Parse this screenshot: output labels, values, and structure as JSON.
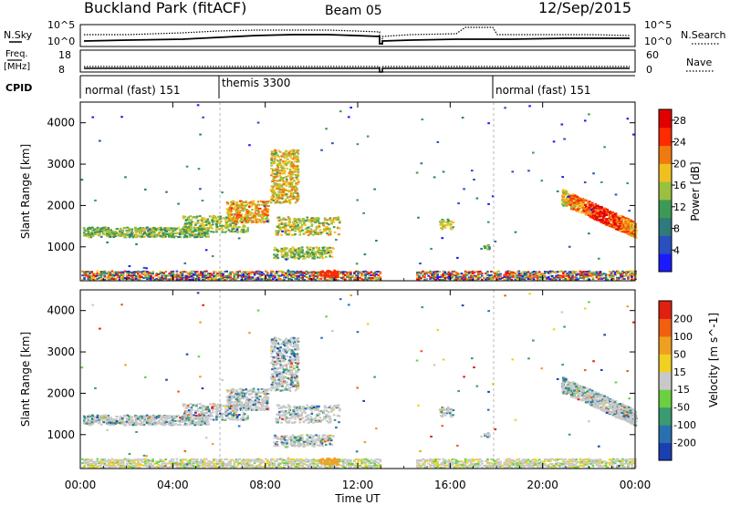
{
  "header": {
    "station": "Buckland Park (fitACF)",
    "beam": "Beam 05",
    "date": "12/Sep/2015"
  },
  "noise_panel": {
    "left_label": "N.Sky",
    "right_label": "N.Search",
    "left_ticks": [
      "10^5",
      "10^0"
    ],
    "right_ticks": [
      "10^5",
      "10^0"
    ]
  },
  "freq_panel": {
    "left_label_1": "Freq.",
    "left_label_2": "[MHz]",
    "right_label": "Nave",
    "left_ticks": [
      "18",
      "8"
    ],
    "right_ticks": [
      "60",
      "0"
    ]
  },
  "cpid": {
    "label": "CPID",
    "segments": [
      {
        "name": "normal (fast) 151",
        "start_h": 0,
        "end_h": 6
      },
      {
        "name": "themis 3300",
        "start_h": 6,
        "end_h": 18
      },
      {
        "name": "normal (fast) 151",
        "start_h": 18,
        "end_h": 24
      }
    ]
  },
  "chart_data": [
    {
      "type": "heatmap",
      "name": "power",
      "xlabel": "Time UT",
      "ylabel": "Slant Range [km]",
      "xlim": [
        0,
        24
      ],
      "ylim": [
        180,
        4500
      ],
      "x_ticks": [
        "00:00",
        "04:00",
        "08:00",
        "12:00",
        "16:00",
        "20:00",
        "00:00"
      ],
      "y_ticks": [
        1000,
        2000,
        3000,
        4000
      ],
      "data_gap_h": [
        13.0,
        14.5
      ],
      "colorbar": {
        "label": "Power [dB]",
        "ticks": [
          4,
          8,
          12,
          16,
          20,
          24,
          28
        ],
        "range": [
          0,
          30
        ],
        "colors": [
          "#1a1aff",
          "#2a4fc0",
          "#2f7a7a",
          "#3d9a55",
          "#9ac040",
          "#f0c020",
          "#f07a10",
          "#ff2a00",
          "#e00000"
        ]
      }
    },
    {
      "type": "heatmap",
      "name": "velocity",
      "xlabel": "Time UT",
      "ylabel": "Slant Range [km]",
      "xlim": [
        0,
        24
      ],
      "ylim": [
        180,
        4500
      ],
      "x_ticks": [
        "00:00",
        "04:00",
        "08:00",
        "12:00",
        "16:00",
        "20:00",
        "00:00"
      ],
      "y_ticks": [
        1000,
        2000,
        3000,
        4000
      ],
      "data_gap_h": [
        13.0,
        14.5
      ],
      "colorbar": {
        "label": "Velocity [m s^-1]",
        "ticks": [
          "200",
          "100",
          "50",
          "15",
          "-15",
          "-50",
          "-100",
          "-200"
        ],
        "range": [
          -250,
          250
        ],
        "colors": [
          "#1a3fb0",
          "#2a70b0",
          "#3a9a70",
          "#6ad040",
          "#c8c8c8",
          "#f0d020",
          "#f0a020",
          "#f06010",
          "#e02010"
        ]
      }
    }
  ]
}
